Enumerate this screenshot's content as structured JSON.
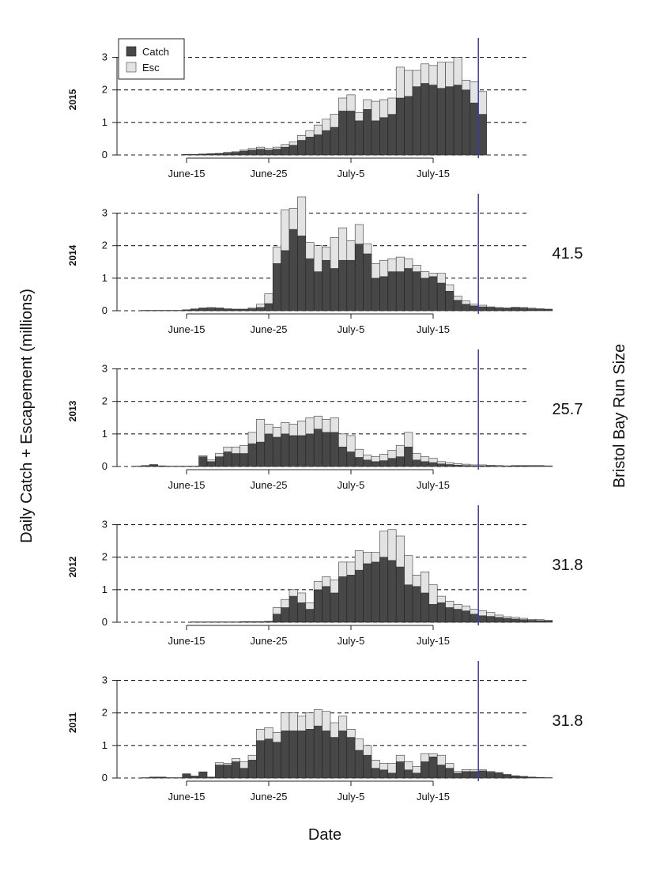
{
  "y_axis_label": "Daily Catch + Escapement (millions)",
  "x_axis_label": "Date",
  "right_axis_label": "Bristol Bay Run Size",
  "colors": {
    "catch": "#474747",
    "escapement": "#e3e3e3",
    "marker": "#3b3bb0"
  },
  "chart_data": {
    "type": "bar",
    "stacked": true,
    "x_tick_labels": [
      "June-15",
      "June-25",
      "July-5",
      "July-15"
    ],
    "y_ticks": [
      0,
      1,
      2,
      3
    ],
    "ylim": [
      0,
      3.5
    ],
    "grid": "horizontal dashed at 1, 2, 3",
    "legend": {
      "placement": "top-left",
      "entries": [
        "Catch",
        "Esc"
      ]
    },
    "marker_line_day": 43,
    "panels": [
      {
        "year": "2015",
        "run_size": "",
        "catch": [
          0,
          0,
          0,
          0,
          0,
          0,
          0,
          0.01,
          0.01,
          0.02,
          0.03,
          0.04,
          0.06,
          0.08,
          0.12,
          0.15,
          0.18,
          0.15,
          0.18,
          0.24,
          0.3,
          0.45,
          0.55,
          0.62,
          0.75,
          0.85,
          1.35,
          1.35,
          1.05,
          1.4,
          1.05,
          1.15,
          1.25,
          1.75,
          1.8,
          2.1,
          2.2,
          2.15,
          2.05,
          2.1,
          2.15,
          2.0,
          1.6,
          1.25,
          0,
          0,
          0,
          0,
          0,
          0,
          0,
          0
        ],
        "escapement": [
          0,
          0,
          0,
          0,
          0,
          0,
          0,
          0.01,
          0.01,
          0.01,
          0.01,
          0.01,
          0.02,
          0.02,
          0.03,
          0.05,
          0.06,
          0.05,
          0.06,
          0.08,
          0.1,
          0.15,
          0.2,
          0.3,
          0.35,
          0.4,
          0.4,
          0.5,
          0.25,
          0.3,
          0.6,
          0.55,
          0.5,
          0.95,
          0.8,
          0.5,
          0.6,
          0.6,
          0.8,
          0.75,
          0.85,
          0.3,
          0.65,
          0.7,
          0,
          0,
          0,
          0,
          0,
          0,
          0,
          0
        ]
      },
      {
        "year": "2014",
        "run_size": "41.5",
        "catch": [
          0,
          0,
          0.01,
          0.01,
          0.01,
          0.01,
          0.01,
          0.02,
          0.04,
          0.07,
          0.08,
          0.07,
          0.05,
          0.04,
          0.04,
          0.06,
          0.1,
          0.22,
          1.45,
          1.85,
          2.5,
          2.3,
          1.6,
          1.2,
          1.55,
          1.3,
          1.55,
          1.55,
          2.05,
          1.75,
          1.0,
          1.05,
          1.2,
          1.2,
          1.3,
          1.2,
          1.0,
          1.05,
          0.85,
          0.6,
          0.32,
          0.2,
          0.15,
          0.12,
          0.1,
          0.08,
          0.07,
          0.09,
          0.08,
          0.06,
          0.05,
          0.04
        ],
        "escapement": [
          0,
          0,
          0,
          0,
          0,
          0,
          0,
          0.01,
          0.02,
          0.02,
          0.02,
          0.02,
          0.01,
          0.01,
          0.01,
          0.03,
          0.1,
          0.3,
          0.5,
          1.25,
          0.65,
          1.2,
          0.5,
          0.8,
          0.4,
          0.95,
          1.0,
          0.6,
          0.6,
          0.3,
          0.45,
          0.5,
          0.4,
          0.45,
          0.3,
          0.2,
          0.2,
          0.1,
          0.3,
          0.2,
          0.13,
          0.1,
          0.05,
          0.05,
          0.02,
          0.02,
          0.02,
          0.02,
          0.02,
          0.02,
          0.01,
          0.01
        ]
      },
      {
        "year": "2013",
        "run_size": "25.7",
        "catch": [
          0,
          0.01,
          0.02,
          0.05,
          0.02,
          0.01,
          0.01,
          0.01,
          0.01,
          0.3,
          0.15,
          0.3,
          0.45,
          0.4,
          0.4,
          0.7,
          0.75,
          1.0,
          0.9,
          1.0,
          0.95,
          0.95,
          1.0,
          1.15,
          1.05,
          1.05,
          0.6,
          0.45,
          0.28,
          0.2,
          0.15,
          0.18,
          0.25,
          0.3,
          0.6,
          0.2,
          0.15,
          0.12,
          0.08,
          0.06,
          0.04,
          0.03,
          0.02,
          0.02,
          0.02,
          0.01,
          0.01,
          0.02,
          0.02,
          0.02,
          0.02,
          0.01
        ],
        "escapement": [
          0,
          0,
          0.01,
          0.01,
          0,
          0,
          0,
          0,
          0,
          0.03,
          0.05,
          0.1,
          0.15,
          0.2,
          0.25,
          0.35,
          0.7,
          0.3,
          0.3,
          0.35,
          0.35,
          0.45,
          0.5,
          0.4,
          0.4,
          0.45,
          0.4,
          0.5,
          0.25,
          0.15,
          0.15,
          0.2,
          0.25,
          0.35,
          0.45,
          0.2,
          0.15,
          0.13,
          0.07,
          0.06,
          0.05,
          0.04,
          0.03,
          0.03,
          0.02,
          0.02,
          0.01,
          0.01,
          0.01,
          0.01,
          0.01,
          0.01
        ]
      },
      {
        "year": "2012",
        "run_size": "31.8",
        "catch": [
          0,
          0,
          0,
          0,
          0,
          0,
          0,
          0,
          0.01,
          0.01,
          0.01,
          0.01,
          0.01,
          0.01,
          0.02,
          0.02,
          0.02,
          0.02,
          0.25,
          0.45,
          0.8,
          0.6,
          0.4,
          1.0,
          1.1,
          0.9,
          1.4,
          1.45,
          1.6,
          1.8,
          1.85,
          2.0,
          1.9,
          1.7,
          1.15,
          1.1,
          0.9,
          0.55,
          0.6,
          0.45,
          0.4,
          0.35,
          0.25,
          0.2,
          0.18,
          0.15,
          0.12,
          0.1,
          0.08,
          0.06,
          0.05,
          0.04
        ],
        "escapement": [
          0,
          0,
          0,
          0,
          0,
          0,
          0,
          0,
          0,
          0,
          0,
          0,
          0,
          0,
          0,
          0,
          0,
          0.01,
          0.2,
          0.25,
          0.2,
          0.3,
          0.2,
          0.25,
          0.3,
          0.4,
          0.45,
          0.4,
          0.6,
          0.35,
          0.3,
          0.8,
          0.95,
          0.95,
          0.9,
          0.35,
          0.65,
          0.6,
          0.2,
          0.2,
          0.15,
          0.15,
          0.15,
          0.15,
          0.12,
          0.07,
          0.05,
          0.05,
          0.04,
          0.03,
          0.03,
          0.02
        ]
      },
      {
        "year": "2011",
        "run_size": "31.8",
        "catch": [
          0,
          0,
          0.01,
          0.02,
          0.02,
          0.01,
          0.01,
          0.12,
          0.05,
          0.18,
          0.02,
          0.4,
          0.4,
          0.5,
          0.3,
          0.55,
          1.15,
          1.2,
          1.1,
          1.45,
          1.45,
          1.45,
          1.5,
          1.6,
          1.45,
          1.25,
          1.45,
          1.25,
          0.85,
          0.7,
          0.3,
          0.25,
          0.15,
          0.5,
          0.25,
          0.15,
          0.5,
          0.65,
          0.4,
          0.3,
          0.15,
          0.2,
          0.2,
          0.22,
          0.18,
          0.15,
          0.1,
          0.06,
          0.04,
          0.02,
          0.01,
          0.01
        ],
        "escapement": [
          0,
          0,
          0,
          0.01,
          0.01,
          0,
          0,
          0.01,
          0.01,
          0.01,
          0.01,
          0.07,
          0.05,
          0.1,
          0.2,
          0.15,
          0.35,
          0.35,
          0.3,
          0.55,
          0.55,
          0.45,
          0.5,
          0.5,
          0.6,
          0.45,
          0.45,
          0.25,
          0.35,
          0.3,
          0.25,
          0.2,
          0.3,
          0.2,
          0.25,
          0.2,
          0.25,
          0.1,
          0.3,
          0.15,
          0.05,
          0.06,
          0.05,
          0.03,
          0.02,
          0.02,
          0.01,
          0.01,
          0.01,
          0.01,
          0.01,
          0
        ]
      }
    ]
  }
}
